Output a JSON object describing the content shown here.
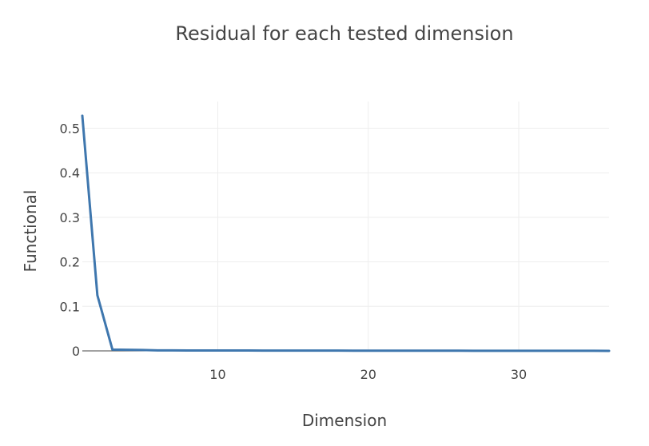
{
  "chart_data": {
    "type": "line",
    "title": "Residual for each tested dimension",
    "xlabel": "Dimension",
    "ylabel": "Functional",
    "xlim": [
      1,
      36
    ],
    "ylim": [
      0,
      0.56
    ],
    "xticks": [
      10,
      20,
      30
    ],
    "yticks": [
      0,
      0.1,
      0.2,
      0.3,
      0.4,
      0.5
    ],
    "xtick_labels": [
      "10",
      "20",
      "30"
    ],
    "ytick_labels": [
      "0",
      "0.1",
      "0.2",
      "0.3",
      "0.4",
      "0.5"
    ],
    "grid": true,
    "legend": "none",
    "color": "#3f77ae",
    "series": [
      {
        "x": [
          1,
          2,
          3,
          4,
          5,
          6,
          7,
          8,
          9,
          10,
          11,
          12,
          13,
          14,
          15,
          16,
          17,
          18,
          19,
          20,
          21,
          22,
          23,
          24,
          25,
          26,
          27,
          28,
          29,
          30,
          31,
          32,
          33,
          34,
          35,
          36
        ],
        "y": [
          0.528,
          0.125,
          0.003,
          0.0025,
          0.002,
          0.0012,
          0.0011,
          0.001,
          0.0009,
          0.0009,
          0.0008,
          0.0008,
          0.0007,
          0.0007,
          0.0007,
          0.0006,
          0.0006,
          0.0006,
          0.0005,
          0.0005,
          0.0005,
          0.0005,
          0.0004,
          0.0004,
          0.0004,
          0.0004,
          0.0003,
          0.0003,
          0.0003,
          0.0003,
          0.0003,
          0.0002,
          0.0002,
          0.0002,
          0.0002,
          0.0001
        ]
      }
    ]
  }
}
